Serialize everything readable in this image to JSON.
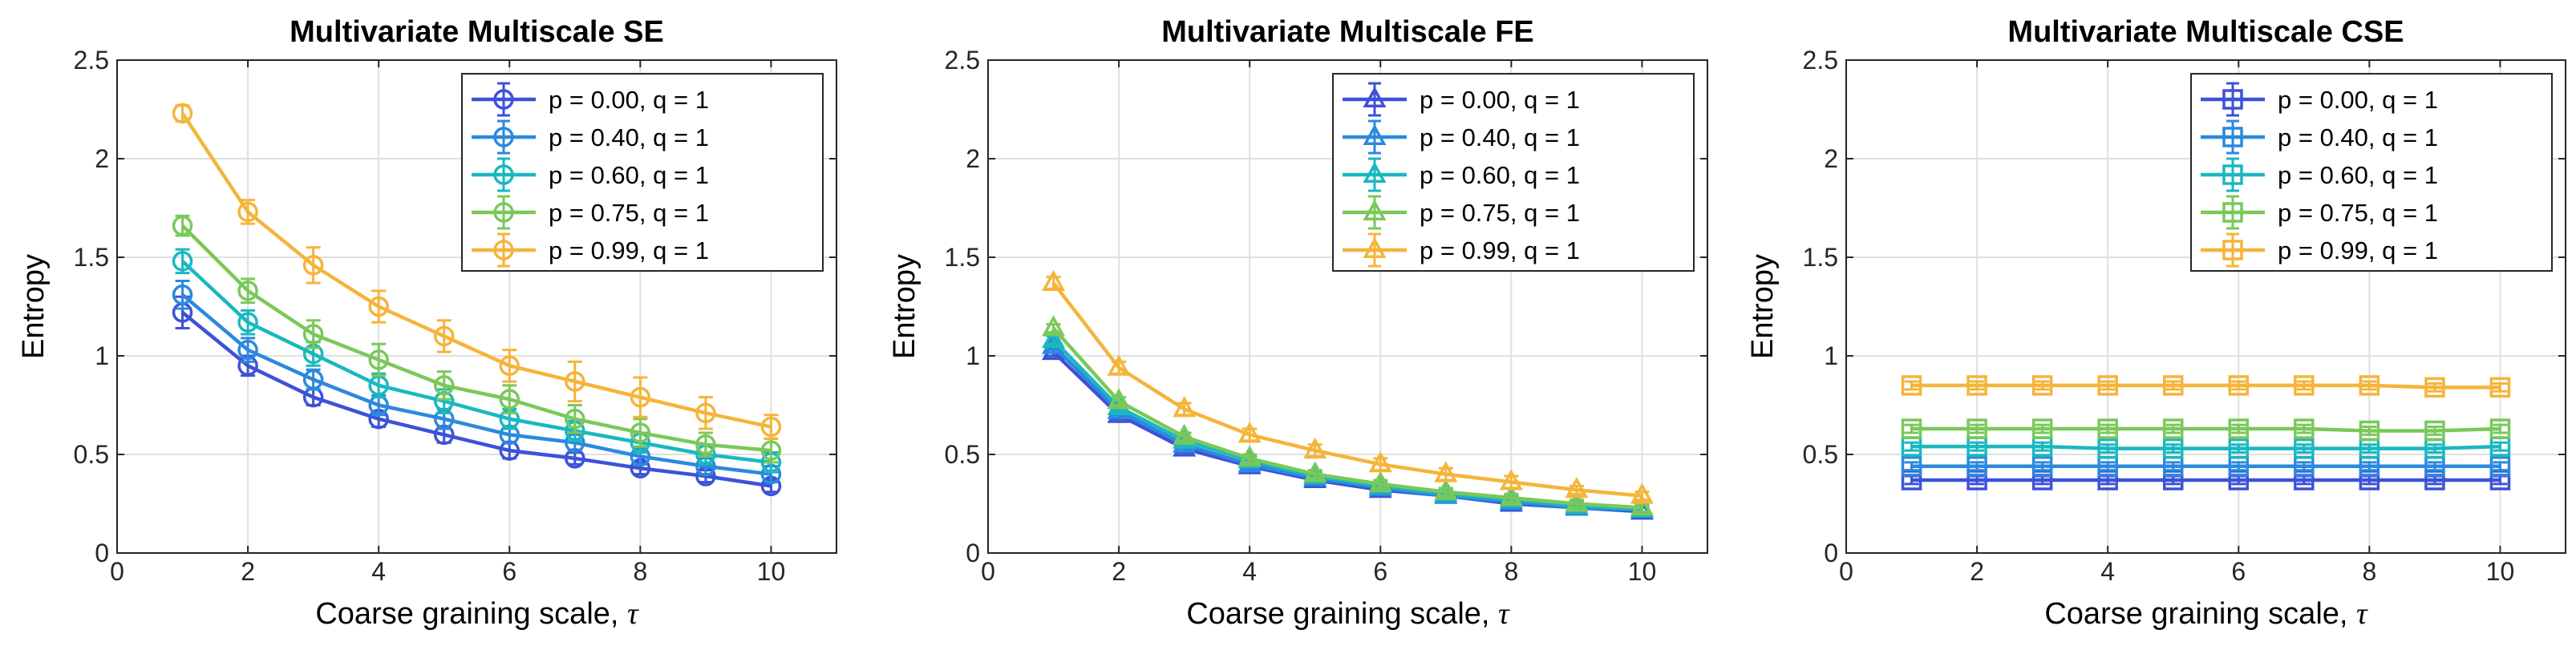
{
  "series_colors": [
    "#3d52d9",
    "#2b89de",
    "#19b8c0",
    "#7ac85a",
    "#f5b43a"
  ],
  "chart_data": [
    {
      "type": "line",
      "title": "Multivariate Multiscale SE",
      "xlabel": "Coarse graining scale, ",
      "xlabel_symbol": "τ",
      "ylabel": "Entropy",
      "xlim": [
        0,
        11
      ],
      "ylim": [
        0,
        2.5
      ],
      "xticks": [
        "0",
        "2",
        "4",
        "6",
        "8",
        "10"
      ],
      "yticks": [
        "0",
        "0.5",
        "1",
        "1.5",
        "2",
        "2.5"
      ],
      "grid": true,
      "legend_position": "top-right",
      "marker": "circle",
      "x": [
        1,
        2,
        3,
        4,
        5,
        6,
        7,
        8,
        9,
        10
      ],
      "series": [
        {
          "name": "p = 0.00, q = 1",
          "values": [
            1.22,
            0.95,
            0.79,
            0.68,
            0.6,
            0.52,
            0.48,
            0.43,
            0.39,
            0.34
          ],
          "errors": [
            0.08,
            0.05,
            0.04,
            0.04,
            0.04,
            0.04,
            0.03,
            0.03,
            0.03,
            0.03
          ]
        },
        {
          "name": "p = 0.40, q = 1",
          "values": [
            1.31,
            1.03,
            0.88,
            0.75,
            0.68,
            0.6,
            0.56,
            0.49,
            0.44,
            0.4
          ],
          "errors": [
            0.07,
            0.06,
            0.05,
            0.05,
            0.05,
            0.04,
            0.04,
            0.04,
            0.04,
            0.04
          ]
        },
        {
          "name": "p = 0.60, q = 1",
          "values": [
            1.48,
            1.17,
            1.01,
            0.85,
            0.77,
            0.68,
            0.62,
            0.56,
            0.5,
            0.46
          ],
          "errors": [
            0.06,
            0.06,
            0.06,
            0.06,
            0.06,
            0.05,
            0.05,
            0.05,
            0.05,
            0.05
          ]
        },
        {
          "name": "p = 0.75, q = 1",
          "values": [
            1.66,
            1.33,
            1.11,
            0.98,
            0.85,
            0.78,
            0.68,
            0.61,
            0.55,
            0.52
          ],
          "errors": [
            0.05,
            0.06,
            0.07,
            0.08,
            0.07,
            0.07,
            0.07,
            0.07,
            0.06,
            0.06
          ]
        },
        {
          "name": "p = 0.99, q = 1",
          "values": [
            2.23,
            1.73,
            1.46,
            1.25,
            1.1,
            0.95,
            0.87,
            0.79,
            0.71,
            0.64
          ],
          "errors": [
            0.04,
            0.06,
            0.09,
            0.08,
            0.08,
            0.08,
            0.1,
            0.1,
            0.08,
            0.06
          ]
        }
      ]
    },
    {
      "type": "line",
      "title": "Multivariate Multiscale FE",
      "xlabel": "Coarse graining scale, ",
      "xlabel_symbol": "τ",
      "ylabel": "Entropy",
      "xlim": [
        0,
        11
      ],
      "ylim": [
        0,
        2.5
      ],
      "xticks": [
        "0",
        "2",
        "4",
        "6",
        "8",
        "10"
      ],
      "yticks": [
        "0",
        "0.5",
        "1",
        "1.5",
        "2",
        "2.5"
      ],
      "grid": true,
      "legend_position": "top-right",
      "marker": "triangle",
      "x": [
        1,
        2,
        3,
        4,
        5,
        6,
        7,
        8,
        9,
        10
      ],
      "series": [
        {
          "name": "p = 0.00, q = 1",
          "values": [
            1.02,
            0.7,
            0.53,
            0.44,
            0.37,
            0.32,
            0.29,
            0.25,
            0.23,
            0.21
          ],
          "errors": [
            0.02,
            0.02,
            0.02,
            0.02,
            0.02,
            0.02,
            0.02,
            0.02,
            0.02,
            0.02
          ]
        },
        {
          "name": "p = 0.40, q = 1",
          "values": [
            1.05,
            0.72,
            0.55,
            0.45,
            0.38,
            0.33,
            0.29,
            0.26,
            0.23,
            0.22
          ],
          "errors": [
            0.02,
            0.02,
            0.02,
            0.02,
            0.02,
            0.02,
            0.02,
            0.02,
            0.02,
            0.02
          ]
        },
        {
          "name": "p = 0.60, q = 1",
          "values": [
            1.08,
            0.74,
            0.57,
            0.47,
            0.39,
            0.34,
            0.3,
            0.27,
            0.24,
            0.22
          ],
          "errors": [
            0.02,
            0.02,
            0.02,
            0.02,
            0.02,
            0.02,
            0.02,
            0.02,
            0.02,
            0.02
          ]
        },
        {
          "name": "p = 0.75, q = 1",
          "values": [
            1.14,
            0.77,
            0.59,
            0.48,
            0.4,
            0.35,
            0.31,
            0.28,
            0.25,
            0.23
          ],
          "errors": [
            0.02,
            0.02,
            0.02,
            0.02,
            0.02,
            0.02,
            0.02,
            0.02,
            0.02,
            0.02
          ]
        },
        {
          "name": "p = 0.99, q = 1",
          "values": [
            1.37,
            0.94,
            0.73,
            0.6,
            0.52,
            0.45,
            0.4,
            0.36,
            0.32,
            0.29
          ],
          "errors": [
            0.03,
            0.03,
            0.03,
            0.03,
            0.03,
            0.03,
            0.03,
            0.03,
            0.02,
            0.02
          ]
        }
      ]
    },
    {
      "type": "line",
      "title": "Multivariate Multiscale CSE",
      "xlabel": "Coarse graining scale, ",
      "xlabel_symbol": "τ",
      "ylabel": "Entropy",
      "xlim": [
        0,
        11
      ],
      "ylim": [
        0,
        2.5
      ],
      "xticks": [
        "0",
        "2",
        "4",
        "6",
        "8",
        "10"
      ],
      "yticks": [
        "0",
        "0.5",
        "1",
        "1.5",
        "2",
        "2.5"
      ],
      "grid": true,
      "legend_position": "top-right",
      "marker": "square",
      "x": [
        1,
        2,
        3,
        4,
        5,
        6,
        7,
        8,
        9,
        10
      ],
      "series": [
        {
          "name": "p = 0.00, q = 1",
          "values": [
            0.37,
            0.37,
            0.37,
            0.37,
            0.37,
            0.37,
            0.37,
            0.37,
            0.37,
            0.37
          ],
          "errors": [
            0.02,
            0.02,
            0.02,
            0.02,
            0.02,
            0.02,
            0.02,
            0.02,
            0.02,
            0.02
          ]
        },
        {
          "name": "p = 0.40, q = 1",
          "values": [
            0.44,
            0.44,
            0.44,
            0.44,
            0.44,
            0.44,
            0.44,
            0.44,
            0.44,
            0.44
          ],
          "errors": [
            0.02,
            0.02,
            0.02,
            0.02,
            0.02,
            0.02,
            0.02,
            0.02,
            0.02,
            0.02
          ]
        },
        {
          "name": "p = 0.60, q = 1",
          "values": [
            0.54,
            0.54,
            0.54,
            0.53,
            0.53,
            0.53,
            0.53,
            0.53,
            0.53,
            0.54
          ],
          "errors": [
            0.02,
            0.02,
            0.02,
            0.02,
            0.02,
            0.02,
            0.02,
            0.02,
            0.02,
            0.02
          ]
        },
        {
          "name": "p = 0.75, q = 1",
          "values": [
            0.63,
            0.63,
            0.63,
            0.63,
            0.63,
            0.63,
            0.63,
            0.62,
            0.62,
            0.63
          ],
          "errors": [
            0.02,
            0.02,
            0.02,
            0.02,
            0.02,
            0.02,
            0.02,
            0.02,
            0.02,
            0.02
          ]
        },
        {
          "name": "p = 0.99, q = 1",
          "values": [
            0.85,
            0.85,
            0.85,
            0.85,
            0.85,
            0.85,
            0.85,
            0.85,
            0.84,
            0.84
          ],
          "errors": [
            0.02,
            0.02,
            0.02,
            0.02,
            0.02,
            0.02,
            0.02,
            0.02,
            0.02,
            0.02
          ]
        }
      ]
    }
  ]
}
